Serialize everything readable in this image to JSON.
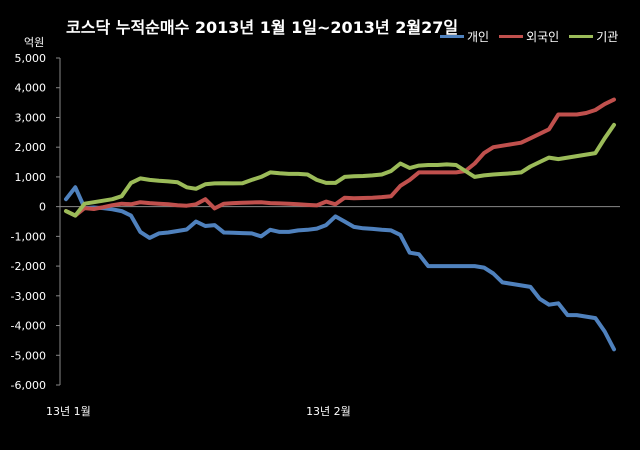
{
  "chart_data": {
    "type": "line",
    "title": "코스닥 누적순매수 2013년 1월 1일~2013년 2월27일",
    "unit_label": "억원",
    "ylim": [
      -6000,
      5000
    ],
    "y_ticks": [
      "5,000",
      "4,000",
      "3,000",
      "2,000",
      "1,000",
      "0",
      "-1,000",
      "-2,000",
      "-3,000",
      "-4,000",
      "-5,000",
      "-6,000"
    ],
    "x_ticks": [
      {
        "label": "13년 1월",
        "index": 0
      },
      {
        "label": "13년 2월",
        "index": 28
      }
    ],
    "grid": false,
    "legend_position": "top-right",
    "series": [
      {
        "name": "개인",
        "color": "#4f81bd",
        "values": [
          250,
          650,
          -50,
          -30,
          -50,
          -90,
          -150,
          -300,
          -850,
          -1050,
          -900,
          -870,
          -820,
          -770,
          -500,
          -650,
          -620,
          -870,
          -880,
          -890,
          -900,
          -1000,
          -780,
          -850,
          -850,
          -800,
          -780,
          -740,
          -620,
          -330,
          -500,
          -680,
          -730,
          -750,
          -780,
          -800,
          -950,
          -1550,
          -1600,
          -2000,
          -2000,
          -2000,
          -2000,
          -2000,
          -2000,
          -2050,
          -2250,
          -2550,
          -2600,
          -2650,
          -2700,
          -3100,
          -3300,
          -3250,
          -3650,
          -3650,
          -3700,
          -3750,
          -4200,
          -4800
        ]
      },
      {
        "name": "외국인",
        "color": "#c0504d",
        "values": [
          -150,
          -300,
          -50,
          -80,
          -20,
          50,
          100,
          80,
          150,
          120,
          100,
          80,
          50,
          30,
          80,
          250,
          -60,
          100,
          120,
          130,
          140,
          150,
          120,
          110,
          100,
          80,
          60,
          40,
          170,
          80,
          300,
          280,
          290,
          300,
          320,
          350,
          700,
          900,
          1150,
          1150,
          1150,
          1150,
          1150,
          1200,
          1450,
          1800,
          2000,
          2050,
          2100,
          2150,
          2300,
          2450,
          2600,
          3100,
          3100,
          3100,
          3150,
          3250,
          3450,
          3600
        ]
      },
      {
        "name": "기관",
        "color": "#9bbb59",
        "values": [
          -150,
          -300,
          100,
          150,
          200,
          250,
          350,
          800,
          950,
          900,
          870,
          850,
          820,
          650,
          600,
          750,
          780,
          790,
          780,
          790,
          900,
          1000,
          1150,
          1120,
          1100,
          1100,
          1080,
          900,
          800,
          800,
          1000,
          1020,
          1030,
          1050,
          1080,
          1200,
          1450,
          1300,
          1380,
          1400,
          1400,
          1420,
          1400,
          1200,
          1000,
          1050,
          1080,
          1100,
          1120,
          1150,
          1350,
          1500,
          1650,
          1600,
          1650,
          1700,
          1750,
          1800,
          2300,
          2750
        ]
      }
    ]
  }
}
